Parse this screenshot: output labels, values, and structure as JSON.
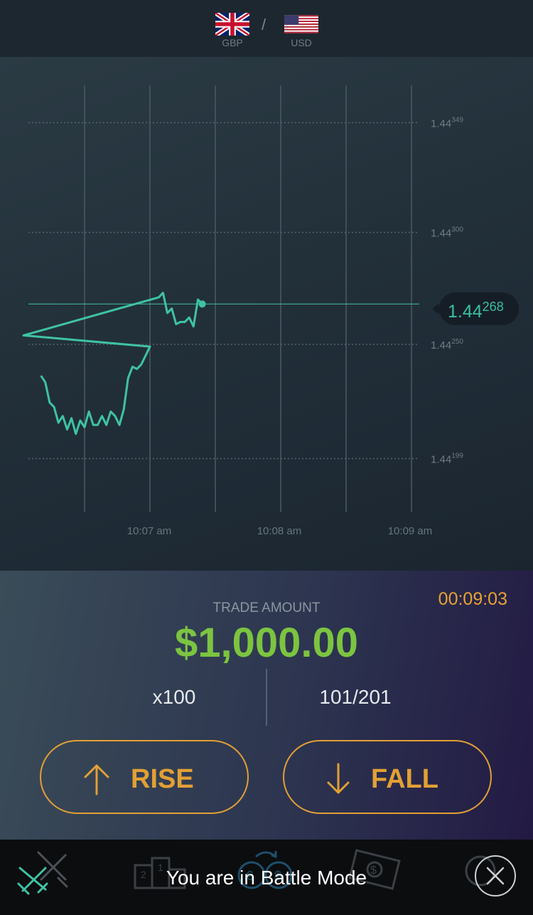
{
  "header": {
    "base_currency": "GBP",
    "quote_currency": "USD",
    "separator": "/"
  },
  "chart": {
    "current_price_main": "1.44",
    "current_price_frac": "268",
    "y_ticks": [
      {
        "main": "1.44",
        "frac": "349"
      },
      {
        "main": "1.44",
        "frac": "300"
      },
      {
        "main": "1.44",
        "frac": "250"
      },
      {
        "main": "1.44",
        "frac": "199"
      }
    ],
    "x_ticks": [
      "10:07 am",
      "10:08 am",
      "10:09 am"
    ]
  },
  "chart_data": {
    "type": "line",
    "title": "",
    "xlabel": "",
    "ylabel": "",
    "ylim": [
      1.44175,
      1.44372
    ],
    "y_ticks": [
      1.44349,
      1.443,
      1.4425,
      1.44199
    ],
    "x_ticks": [
      "10:07 am",
      "10:08 am",
      "10:09 am"
    ],
    "current_price": 1.44268,
    "series": [
      {
        "color": "#3fc3a4",
        "points": [
          [
            "10:06:10",
            1.44236
          ],
          [
            "10:06:12",
            1.44233
          ],
          [
            "10:06:14",
            1.44224
          ],
          [
            "10:06:16",
            1.44222
          ],
          [
            "10:06:18",
            1.44215
          ],
          [
            "10:06:20",
            1.44218
          ],
          [
            "10:06:22",
            1.44212
          ],
          [
            "10:06:24",
            1.44217
          ],
          [
            "10:06:26",
            1.4421
          ],
          [
            "10:06:28",
            1.44216
          ],
          [
            "10:06:30",
            1.44213
          ],
          [
            "10:06:32",
            1.4422
          ],
          [
            "10:06:34",
            1.44214
          ],
          [
            "10:06:36",
            1.44214
          ],
          [
            "10:06:38",
            1.44218
          ],
          [
            "10:06:40",
            1.44214
          ],
          [
            "10:06:42",
            1.4422
          ],
          [
            "10:06:44",
            1.44218
          ],
          [
            "10:06:46",
            1.44214
          ],
          [
            "10:06:48",
            1.44221
          ],
          [
            "10:06:50",
            1.44235
          ],
          [
            "10:06:52",
            1.4424
          ],
          [
            "10:06:54",
            1.44239
          ],
          [
            "10:06:56",
            1.44241
          ],
          [
            "10:06:58",
            1.44245
          ],
          [
            "10:07:00",
            1.44249
          ],
          [
            "10:06:02",
            1.44254
          ],
          [
            "10:07:04",
            1.44271
          ],
          [
            "10:07:06",
            1.44273
          ],
          [
            "10:07:08",
            1.44264
          ],
          [
            "10:07:10",
            1.44266
          ],
          [
            "10:07:12",
            1.44259
          ],
          [
            "10:07:14",
            1.4426
          ],
          [
            "10:07:16",
            1.4426
          ],
          [
            "10:07:18",
            1.44262
          ],
          [
            "10:07:20",
            1.44258
          ],
          [
            "10:07:22",
            1.4427
          ],
          [
            "10:07:24",
            1.44268
          ]
        ]
      }
    ]
  },
  "trade": {
    "timer": "00:09:03",
    "amount_label": "TRADE AMOUNT",
    "amount": "$1,000.00",
    "multiplier": "x100",
    "counter": "101/201",
    "rise_label": "RISE",
    "fall_label": "FALL"
  },
  "footer": {
    "message": "You are in Battle Mode",
    "icons": [
      "battle-swords-icon",
      "leaderboard-icon",
      "currency-exchange-icon",
      "cash-icon",
      "profile-icon",
      "close-icon"
    ]
  },
  "colors": {
    "accent": "#e2a034",
    "price_line": "#3fc3a4",
    "amount": "#7cc440"
  }
}
